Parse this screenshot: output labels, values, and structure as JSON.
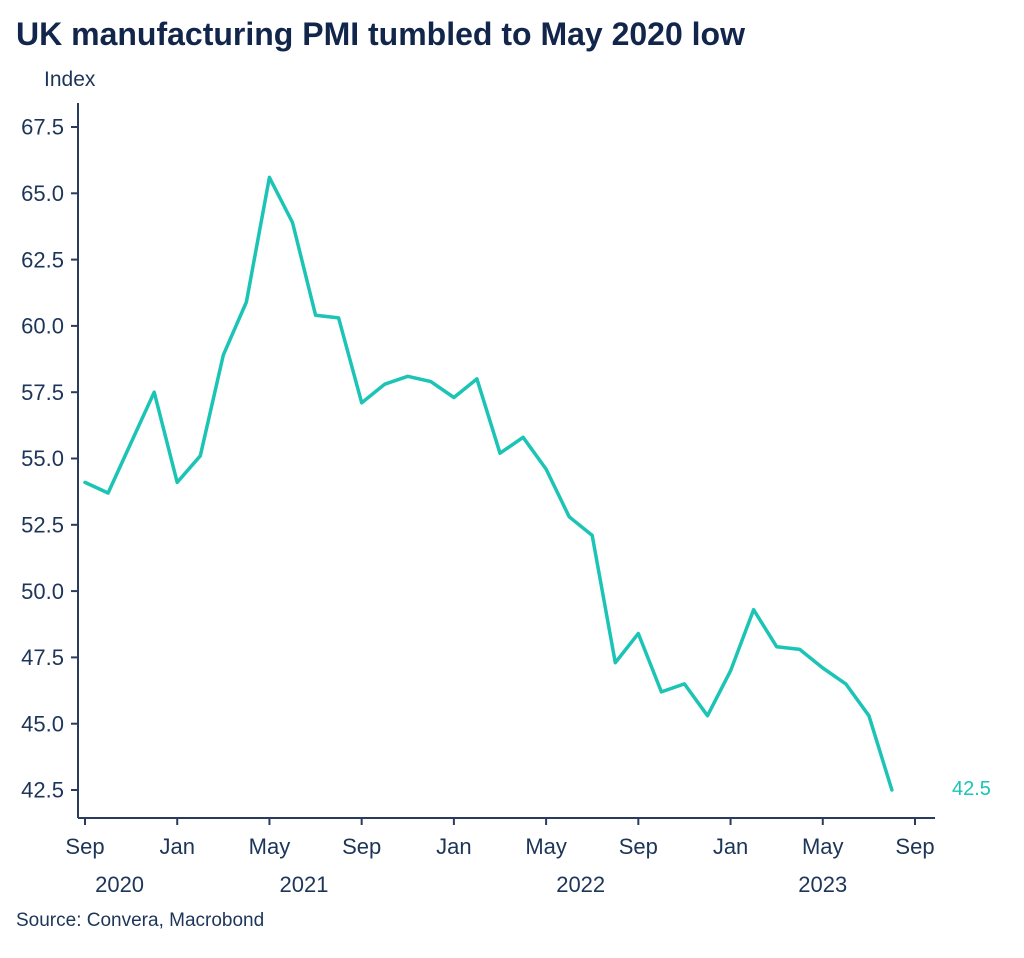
{
  "title": "UK manufacturing PMI tumbled to May 2020 low",
  "y_axis_title": "Index",
  "source": "Source: Convera, Macrobond",
  "colors": {
    "title": "#12264B",
    "text": "#1C3558",
    "axis": "#2A3C5E",
    "line": "#1BC4B4"
  },
  "chart_data": {
    "type": "line",
    "title": "UK manufacturing PMI tumbled to May 2020 low",
    "ylabel": "Index",
    "ylim": [
      42.5,
      67.5
    ],
    "grid": false,
    "legend": "none",
    "y_ticks": [
      67.5,
      65.0,
      62.5,
      60.0,
      57.5,
      55.0,
      52.5,
      50.0,
      47.5,
      45.0,
      42.5
    ],
    "x_tick_labels": [
      "Sep",
      "Jan",
      "May",
      "Sep",
      "Jan",
      "May",
      "Sep",
      "Jan",
      "May",
      "Sep"
    ],
    "x_tick_months": [
      0,
      4,
      8,
      12,
      16,
      20,
      24,
      28,
      32,
      36
    ],
    "year_labels": [
      {
        "label": "2020",
        "center_month": 1.5
      },
      {
        "label": "2021",
        "center_month": 9.5
      },
      {
        "label": "2022",
        "center_month": 21.5
      },
      {
        "label": "2023",
        "center_month": 32
      }
    ],
    "last_value_label": "42.5",
    "series": [
      {
        "name": "UK Manufacturing PMI",
        "x": [
          "Sep 2020",
          "Oct 2020",
          "Nov 2020",
          "Dec 2020",
          "Jan 2021",
          "Feb 2021",
          "Mar 2021",
          "Apr 2021",
          "May 2021",
          "Jun 2021",
          "Jul 2021",
          "Aug 2021",
          "Sep 2021",
          "Oct 2021",
          "Nov 2021",
          "Dec 2021",
          "Jan 2022",
          "Feb 2022",
          "Mar 2022",
          "Apr 2022",
          "May 2022",
          "Jun 2022",
          "Jul 2022",
          "Aug 2022",
          "Sep 2022",
          "Oct 2022",
          "Nov 2022",
          "Dec 2022",
          "Jan 2023",
          "Feb 2023",
          "Mar 2023",
          "Apr 2023",
          "May 2023",
          "Jun 2023",
          "Jul 2023",
          "Aug 2023"
        ],
        "values": [
          54.1,
          53.7,
          55.6,
          57.5,
          54.1,
          55.1,
          58.9,
          60.9,
          65.6,
          63.9,
          60.4,
          60.3,
          57.1,
          57.8,
          58.1,
          57.9,
          57.3,
          58.0,
          55.2,
          55.8,
          54.6,
          52.8,
          52.1,
          47.3,
          48.4,
          46.2,
          46.5,
          45.3,
          47.0,
          49.3,
          47.9,
          47.8,
          47.1,
          46.5,
          45.3,
          42.5
        ]
      }
    ]
  }
}
